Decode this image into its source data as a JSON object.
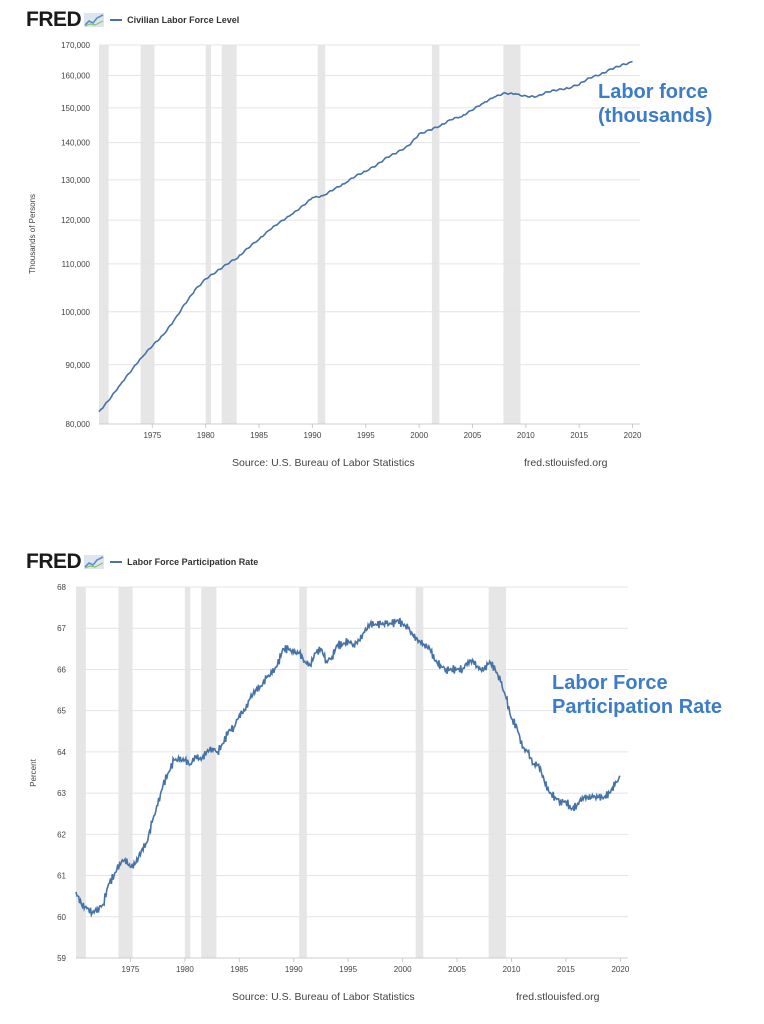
{
  "chart_data": [
    {
      "type": "line",
      "header": {
        "logo": "FRED",
        "legend": "Civilian Labor Force Level"
      },
      "ylabel": "Thousands of Persons",
      "yscale": "log",
      "ylim": [
        80000,
        170000
      ],
      "yticks": [
        80000,
        90000,
        100000,
        110000,
        120000,
        130000,
        140000,
        150000,
        160000,
        170000
      ],
      "ytick_labels": [
        "80,000",
        "90,000",
        "100,000",
        "110,000",
        "120,000",
        "130,000",
        "140,000",
        "150,000",
        "160,000",
        "170,000"
      ],
      "xlim": [
        1970.0,
        2020.7
      ],
      "xticks": [
        1975,
        1980,
        1985,
        1990,
        1995,
        2000,
        2005,
        2010,
        2015,
        2020
      ],
      "xtick_labels": [
        "1975",
        "1980",
        "1985",
        "1990",
        "1995",
        "2000",
        "2005",
        "2010",
        "2015",
        "2020"
      ],
      "recessions": [
        [
          1970.0,
          1970.9
        ],
        [
          1973.9,
          1975.2
        ],
        [
          1980.0,
          1980.5
        ],
        [
          1981.5,
          1982.9
        ],
        [
          1990.5,
          1991.2
        ],
        [
          2001.2,
          2001.9
        ],
        [
          2007.9,
          2009.5
        ]
      ],
      "series": [
        {
          "name": "Civilian Labor Force Level",
          "x": [
            1970.0,
            1971,
            1972,
            1973,
            1974,
            1975,
            1976,
            1977,
            1978,
            1979,
            1980,
            1981,
            1982,
            1983,
            1984,
            1985,
            1986,
            1987,
            1988,
            1989,
            1990,
            1991,
            1992,
            1993,
            1994,
            1995,
            1996,
            1997,
            1998,
            1999,
            2000,
            2001,
            2002,
            2003,
            2004,
            2005,
            2006,
            2007,
            2008,
            2009,
            2010,
            2011,
            2012,
            2013,
            2014,
            2015,
            2016,
            2017,
            2018,
            2019,
            2020
          ],
          "values": [
            82000,
            84000,
            86500,
            88800,
            91300,
            93400,
            95500,
            98200,
            101500,
            104500,
            106800,
            108300,
            109900,
            111300,
            113500,
            115500,
            117700,
            119700,
            121300,
            123400,
            125500,
            126000,
            127500,
            129000,
            130800,
            132200,
            133800,
            136000,
            137500,
            139200,
            142500,
            143600,
            144800,
            146500,
            147400,
            149300,
            151400,
            153200,
            154600,
            154300,
            153700,
            153400,
            154900,
            155400,
            155900,
            157100,
            159200,
            160300,
            162100,
            163500,
            164500
          ]
        }
      ],
      "source": "Source: U.S. Bureau of Labor Statistics",
      "site": "fred.stlouisfed.org",
      "annotation": [
        "Labor force",
        "(thousands)"
      ],
      "line_color": "#4572a7",
      "annotation_color": "#3d7cc9",
      "recession_color": "#e6e6e6"
    },
    {
      "type": "line",
      "header": {
        "logo": "FRED",
        "legend": "Labor Force Participation Rate"
      },
      "ylabel": "Percent",
      "ylim": [
        59,
        68
      ],
      "yticks": [
        59,
        60,
        61,
        62,
        63,
        64,
        65,
        66,
        67,
        68
      ],
      "ytick_labels": [
        "59",
        "60",
        "61",
        "62",
        "63",
        "64",
        "65",
        "66",
        "67",
        "68"
      ],
      "xlim": [
        1970.0,
        2020.7
      ],
      "xticks": [
        1975,
        1980,
        1985,
        1990,
        1995,
        2000,
        2005,
        2010,
        2015,
        2020
      ],
      "xtick_labels": [
        "1975",
        "1980",
        "1985",
        "1990",
        "1995",
        "2000",
        "2005",
        "2010",
        "2015",
        "2020"
      ],
      "recessions": [
        [
          1970.0,
          1970.9
        ],
        [
          1973.9,
          1975.2
        ],
        [
          1980.0,
          1980.5
        ],
        [
          1981.5,
          1982.9
        ],
        [
          1990.5,
          1991.2
        ],
        [
          2001.2,
          2001.9
        ],
        [
          2007.9,
          2009.5
        ]
      ],
      "series": [
        {
          "name": "Labor Force Participation Rate",
          "x": [
            1970.0,
            1970.5,
            1971,
            1971.5,
            1972,
            1972.5,
            1973,
            1973.5,
            1974,
            1974.5,
            1975,
            1975.5,
            1976,
            1976.5,
            1977,
            1977.5,
            1978,
            1978.5,
            1979,
            1979.5,
            1980,
            1980.5,
            1981,
            1981.5,
            1982,
            1982.5,
            1983,
            1983.5,
            1984,
            1984.5,
            1985,
            1985.5,
            1986,
            1986.5,
            1987,
            1987.5,
            1988,
            1988.5,
            1989,
            1989.5,
            1990,
            1990.5,
            1991,
            1991.5,
            1992,
            1992.5,
            1993,
            1993.5,
            1994,
            1994.5,
            1995,
            1995.5,
            1996,
            1996.5,
            1997,
            1997.5,
            1998,
            1998.5,
            1999,
            1999.5,
            2000,
            2000.5,
            2001,
            2001.5,
            2002,
            2002.5,
            2003,
            2003.5,
            2004,
            2004.5,
            2005,
            2005.5,
            2006,
            2006.5,
            2007,
            2007.5,
            2008,
            2008.5,
            2009,
            2009.5,
            2010,
            2010.5,
            2011,
            2011.5,
            2012,
            2012.5,
            2013,
            2013.5,
            2014,
            2014.5,
            2015,
            2015.5,
            2016,
            2016.5,
            2017,
            2017.5,
            2018,
            2018.5,
            2019,
            2019.5,
            2020
          ],
          "values": [
            60.6,
            60.3,
            60.2,
            60.1,
            60.2,
            60.3,
            60.8,
            61.0,
            61.3,
            61.4,
            61.2,
            61.3,
            61.6,
            61.8,
            62.3,
            62.7,
            63.2,
            63.5,
            63.8,
            63.8,
            63.8,
            63.7,
            63.9,
            63.8,
            64.0,
            64.1,
            64.0,
            64.2,
            64.5,
            64.6,
            64.9,
            65.0,
            65.3,
            65.5,
            65.6,
            65.8,
            65.9,
            66.1,
            66.5,
            66.5,
            66.4,
            66.4,
            66.2,
            66.1,
            66.4,
            66.5,
            66.2,
            66.3,
            66.6,
            66.6,
            66.7,
            66.6,
            66.7,
            66.9,
            67.1,
            67.1,
            67.1,
            67.1,
            67.1,
            67.2,
            67.1,
            67.0,
            66.8,
            66.7,
            66.6,
            66.5,
            66.2,
            66.1,
            66.0,
            66.0,
            66.0,
            66.0,
            66.2,
            66.2,
            66.0,
            66.0,
            66.2,
            66.0,
            65.7,
            65.3,
            64.8,
            64.6,
            64.1,
            64.0,
            63.7,
            63.7,
            63.3,
            63.0,
            62.9,
            62.8,
            62.8,
            62.6,
            62.7,
            62.9,
            62.9,
            62.9,
            62.9,
            62.9,
            63.0,
            63.2,
            63.4
          ],
          "color": "#4572a7"
        }
      ],
      "source": "Source: U.S. Bureau of Labor Statistics",
      "site": "fred.stlouisfed.org",
      "annotation": [
        "Labor Force",
        "Participation Rate"
      ],
      "line_color": "#4572a7",
      "annotation_color": "#3d7cc9",
      "recession_color": "#e6e6e6"
    }
  ]
}
